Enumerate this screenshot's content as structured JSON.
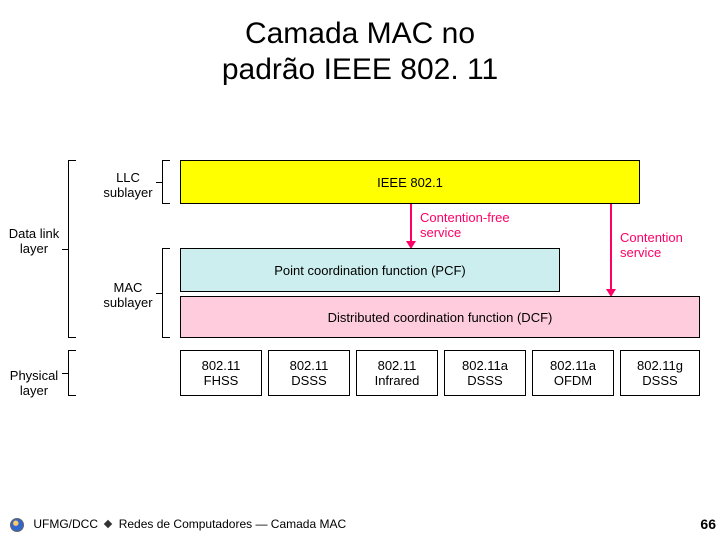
{
  "title": {
    "line1": "Camada MAC no",
    "line2": "padrão IEEE 802. 11"
  },
  "layers": {
    "datalink": {
      "label": "Data link\nlayer"
    },
    "physical": {
      "label": "Physical\nlayer"
    },
    "llc_sub": {
      "label": "LLC\nsublayer"
    },
    "mac_sub": {
      "label": "MAC\nsublayer"
    }
  },
  "boxes": {
    "ieee8021": {
      "text": "IEEE 802.1",
      "bg": "#ffff00"
    },
    "pcf": {
      "text": "Point coordination function (PCF)",
      "bg": "#cceeee"
    },
    "dcf": {
      "text": "Distributed coordination function (DCF)",
      "bg": "#ffccdd"
    },
    "phy": [
      {
        "text": "802.11\nFHSS"
      },
      {
        "text": "802.11\nDSSS"
      },
      {
        "text": "802.11\nInfrared"
      },
      {
        "text": "802.11a\nDSSS"
      },
      {
        "text": "802.11a\nOFDM"
      },
      {
        "text": "802.11g\nDSSS"
      }
    ]
  },
  "arrows": {
    "cf_service": {
      "label": "Contention-free\nservice",
      "color": "#ff0066"
    },
    "c_service": {
      "label": "Contention\nservice",
      "color": "#ff0066"
    }
  },
  "footer": {
    "org": "UFMG/DCC",
    "course": "Redes de Computadores — Camada MAC",
    "page": "66"
  },
  "colors": {
    "arrow": "#ff0066",
    "phy_bg": "#ffffff",
    "border": "#000000"
  }
}
